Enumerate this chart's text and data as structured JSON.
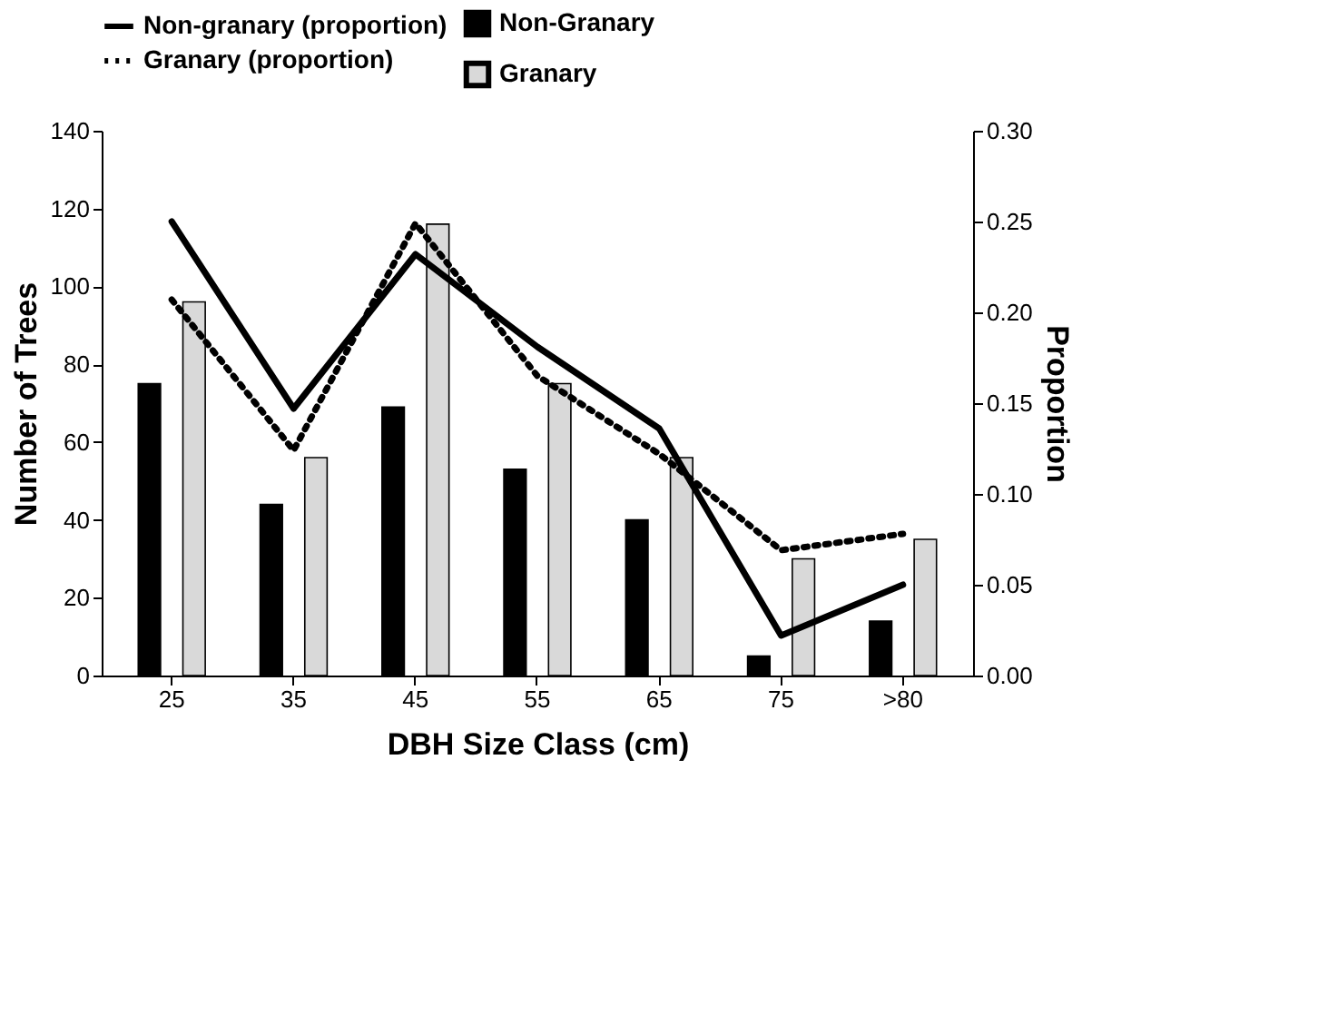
{
  "chart_data": {
    "type": "bar",
    "xlabel": "DBH Size Class (cm)",
    "ylabel": "Number of Trees",
    "y2label": "Proportion",
    "categories": [
      "25",
      "35",
      "45",
      "55",
      "65",
      "75",
      ">80"
    ],
    "series": [
      {
        "name": "Non-Granary",
        "color": "#000000",
        "values": [
          75,
          44,
          69,
          53,
          40,
          5,
          14
        ]
      },
      {
        "name": "Granary",
        "color": "#d9d9d9",
        "values": [
          96,
          56,
          116,
          75,
          56,
          30,
          35
        ]
      },
      {
        "name": "Non-granary (proportion)",
        "type": "line",
        "axis": "y2",
        "color": "#000000",
        "line_style": "solid",
        "values": [
          0.25,
          0.147,
          0.232,
          0.181,
          0.136,
          0.022,
          0.05
        ]
      },
      {
        "name": "Granary (proportion)",
        "type": "line",
        "axis": "y2",
        "color": "#000000",
        "line_style": "dotted",
        "values": [
          0.207,
          0.124,
          0.249,
          0.165,
          0.122,
          0.069,
          0.078
        ]
      }
    ],
    "ylim": [
      0,
      140
    ],
    "yticks": [
      0,
      20,
      40,
      60,
      80,
      100,
      120,
      140
    ],
    "y2lim": [
      0,
      0.3
    ],
    "y2ticks": [
      {
        "value": 0,
        "label": "0.00"
      },
      {
        "value": 0.05,
        "label": "0.05"
      },
      {
        "value": 0.1,
        "label": "0.10"
      },
      {
        "value": 0.15,
        "label": "0.15"
      },
      {
        "value": 0.2,
        "label": "0.20"
      },
      {
        "value": 0.25,
        "label": "0.25"
      },
      {
        "value": 0.3,
        "label": "0.30"
      }
    ],
    "grid": false,
    "legend": "top"
  }
}
